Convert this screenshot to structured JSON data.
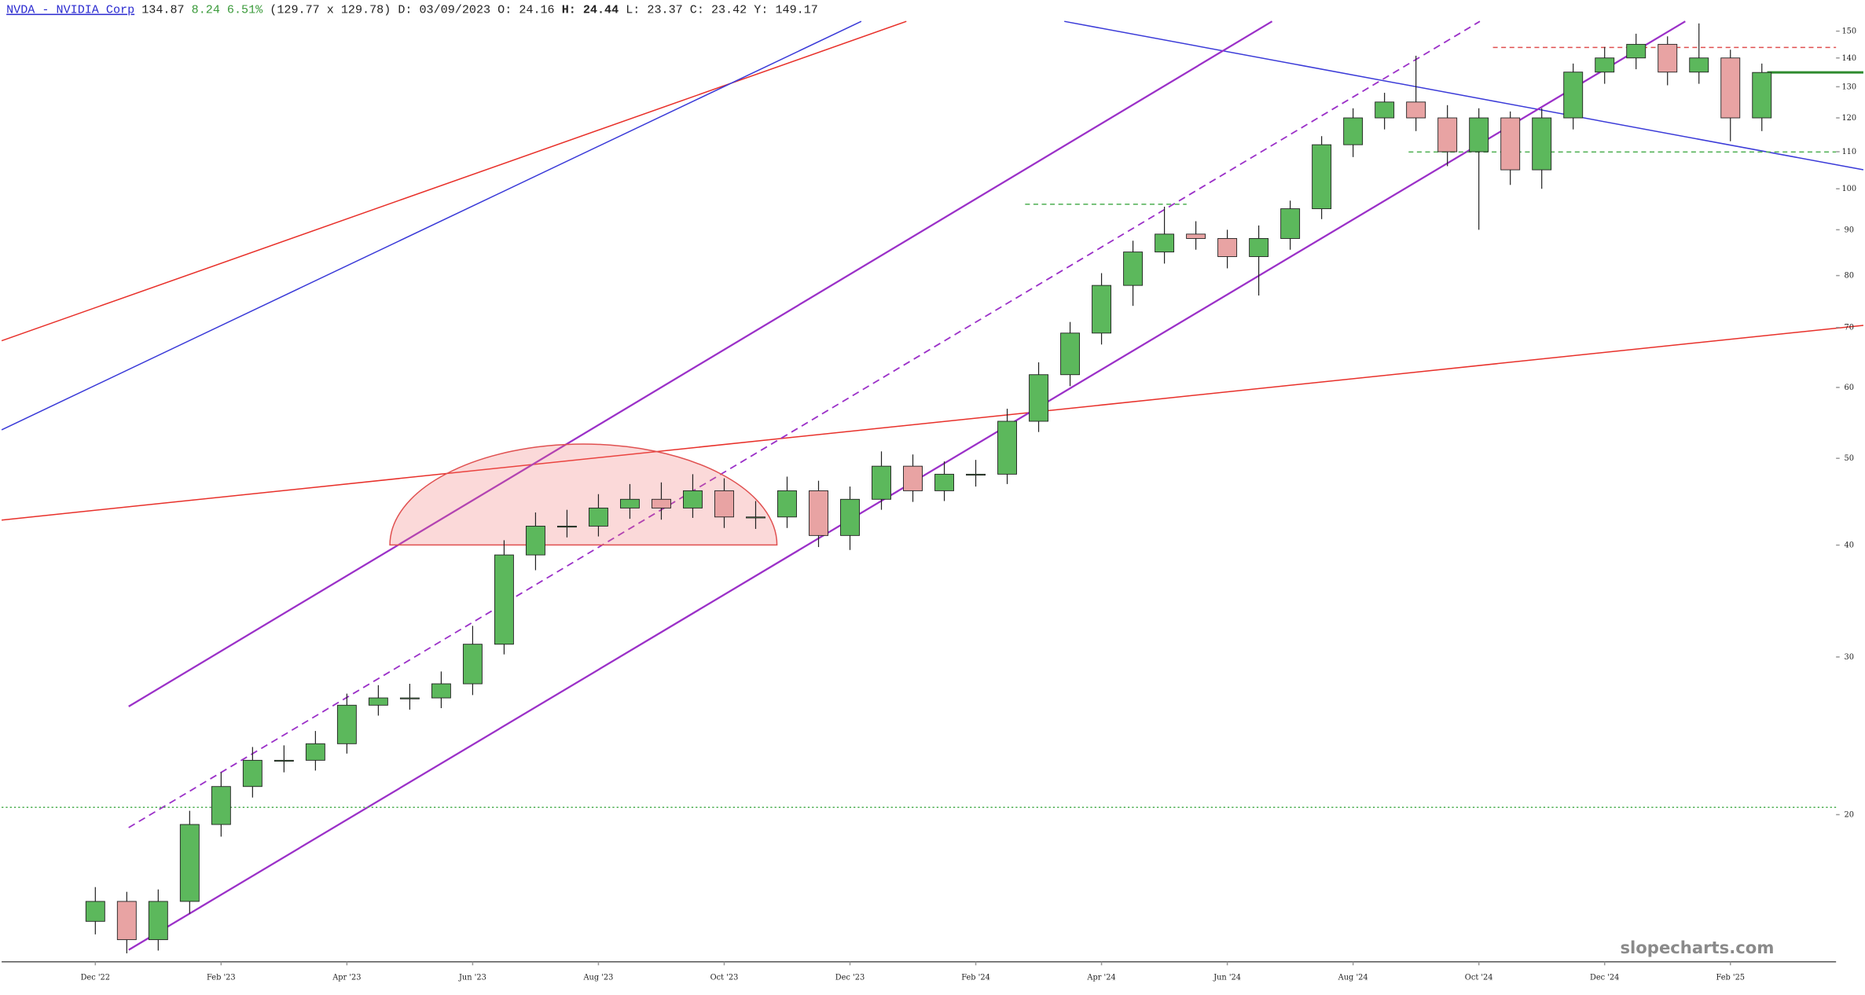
{
  "header": {
    "symbol": "NVDA - NVIDIA Corp",
    "last": "134.87",
    "change": "8.24 6.51%",
    "bid_ask": "(129.77 x 129.78)",
    "date": "D: 03/09/2023",
    "open": "O:  24.16",
    "high_label": "H:",
    "high": "24.44",
    "low": "L:  23.37",
    "close": "C:  23.42",
    "prev": "Y: 149.17"
  },
  "watermark": "slopecharts.com",
  "chart_data": {
    "type": "candlestick",
    "log_scale": true,
    "up_color": "#5cb85c",
    "down_color": "#e8a3a3",
    "xlim": [
      -1.49,
      27.68
    ],
    "ylim": [
      13.7,
      162.5
    ],
    "xticks": [
      {
        "value": 0,
        "label": "Dec '22"
      },
      {
        "value": 2,
        "label": "Feb '23"
      },
      {
        "value": 4,
        "label": "Apr '23"
      },
      {
        "value": 6,
        "label": "Jun '23"
      },
      {
        "value": 8,
        "label": "Aug '23"
      },
      {
        "value": 10,
        "label": "Oct '23"
      },
      {
        "value": 12,
        "label": "Dec '23"
      },
      {
        "value": 14,
        "label": "Feb '24"
      },
      {
        "value": 16,
        "label": "Apr '24"
      },
      {
        "value": 18,
        "label": "Jun '24"
      },
      {
        "value": 20,
        "label": "Aug '24"
      },
      {
        "value": 22,
        "label": "Oct '24"
      },
      {
        "value": 24,
        "label": "Dec '24"
      },
      {
        "value": 26,
        "label": "Feb '25"
      }
    ],
    "yticks": [
      20,
      30,
      40,
      50,
      60,
      70,
      80,
      90,
      100,
      110,
      120,
      130,
      140,
      150
    ],
    "x": [
      0,
      0.5,
      1,
      1.5,
      2,
      2.5,
      3,
      3.5,
      4,
      4.5,
      5,
      5.5,
      6,
      6.5,
      7,
      7.5,
      8,
      8.5,
      9,
      9.5,
      10,
      10.5,
      11,
      11.5,
      12,
      12.5,
      13,
      13.5,
      14,
      14.5,
      15,
      15.5,
      16,
      16.5,
      17,
      17.5,
      18,
      18.5,
      19,
      19.5,
      20,
      20.5,
      21,
      21.5,
      22,
      22.5,
      23,
      23.5,
      24,
      24.5,
      25,
      25.5,
      26,
      26.5
    ],
    "open": [
      15.2,
      16,
      14.5,
      16,
      19.5,
      21.5,
      23,
      23,
      24,
      26.5,
      27,
      27,
      28,
      31,
      39,
      42,
      42,
      44,
      45,
      44,
      46,
      43,
      43,
      46,
      41,
      45,
      49,
      46,
      48,
      48,
      55,
      62,
      69,
      78,
      85,
      89,
      88,
      84,
      88,
      95,
      112,
      120,
      125,
      120,
      110,
      120,
      105,
      120,
      135,
      140,
      145,
      135,
      140,
      120
    ],
    "high": [
      16.6,
      16.4,
      16.5,
      20.2,
      22.3,
      23.8,
      23.9,
      24.8,
      27.3,
      27.9,
      28,
      28.9,
      32.5,
      40.5,
      43.5,
      43.8,
      45.6,
      46.8,
      47,
      48,
      47.5,
      44.8,
      47.7,
      47.2,
      46.5,
      50.9,
      50.5,
      49.6,
      49.8,
      56.8,
      64,
      71,
      80.5,
      87.5,
      95.5,
      92,
      90,
      91,
      97,
      114.5,
      123,
      128,
      140.8,
      124,
      123,
      122,
      123,
      138,
      144,
      149,
      148,
      153,
      143,
      138
    ],
    "low": [
      14.7,
      14,
      14.1,
      15.5,
      18.9,
      20.9,
      22.3,
      22.4,
      23.4,
      25.8,
      26.2,
      26.3,
      27.2,
      30.2,
      37.5,
      40.8,
      40.9,
      42.8,
      42.7,
      42.9,
      41.8,
      41.7,
      41.8,
      39.8,
      39.5,
      43.8,
      44.7,
      44.8,
      46.5,
      46.8,
      53.5,
      60.2,
      67,
      74,
      82.5,
      85.5,
      81.5,
      76,
      85.5,
      92.5,
      108.5,
      116.5,
      116,
      106,
      90,
      101,
      100,
      116.5,
      131,
      136,
      130.5,
      131,
      113,
      116
    ],
    "close": [
      16,
      14.5,
      16,
      19.5,
      21.5,
      23,
      23,
      24,
      26.5,
      27,
      27,
      28,
      31,
      39,
      42,
      42,
      44,
      45,
      44,
      46,
      43,
      43,
      46,
      41,
      45,
      49,
      46,
      48,
      48,
      55,
      62,
      69,
      78,
      85,
      89,
      88,
      84,
      88,
      95,
      112,
      120,
      125,
      120,
      110,
      120,
      105,
      120,
      135,
      140,
      145,
      135,
      140,
      120,
      134.87
    ]
  }
}
